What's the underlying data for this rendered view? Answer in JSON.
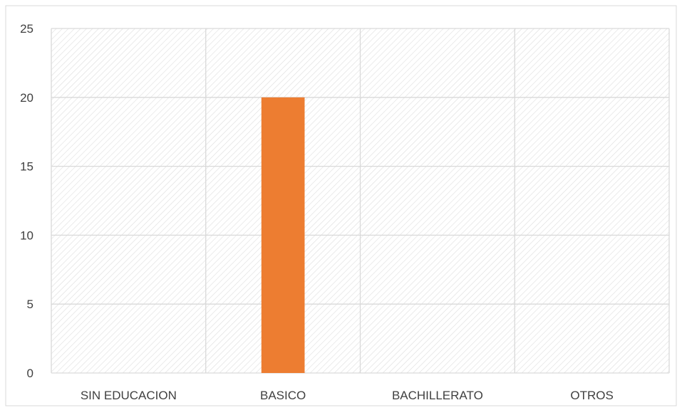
{
  "chart_data": {
    "type": "bar",
    "categories": [
      "SIN EDUCACION",
      "BASICO",
      "BACHILLERATO",
      "OTROS"
    ],
    "values": [
      0,
      20,
      0,
      0
    ],
    "title": "",
    "xlabel": "",
    "ylabel": "",
    "ylim": [
      0,
      25
    ],
    "yticks": [
      0,
      5,
      10,
      15,
      20,
      25
    ],
    "grid": true,
    "legend": "none",
    "colors": {
      "bar": "#ED7D31",
      "grid": "#D9D9D9",
      "hatch": "#D9D9D9",
      "frame": "#D9D9D9",
      "text": "#404040"
    }
  }
}
